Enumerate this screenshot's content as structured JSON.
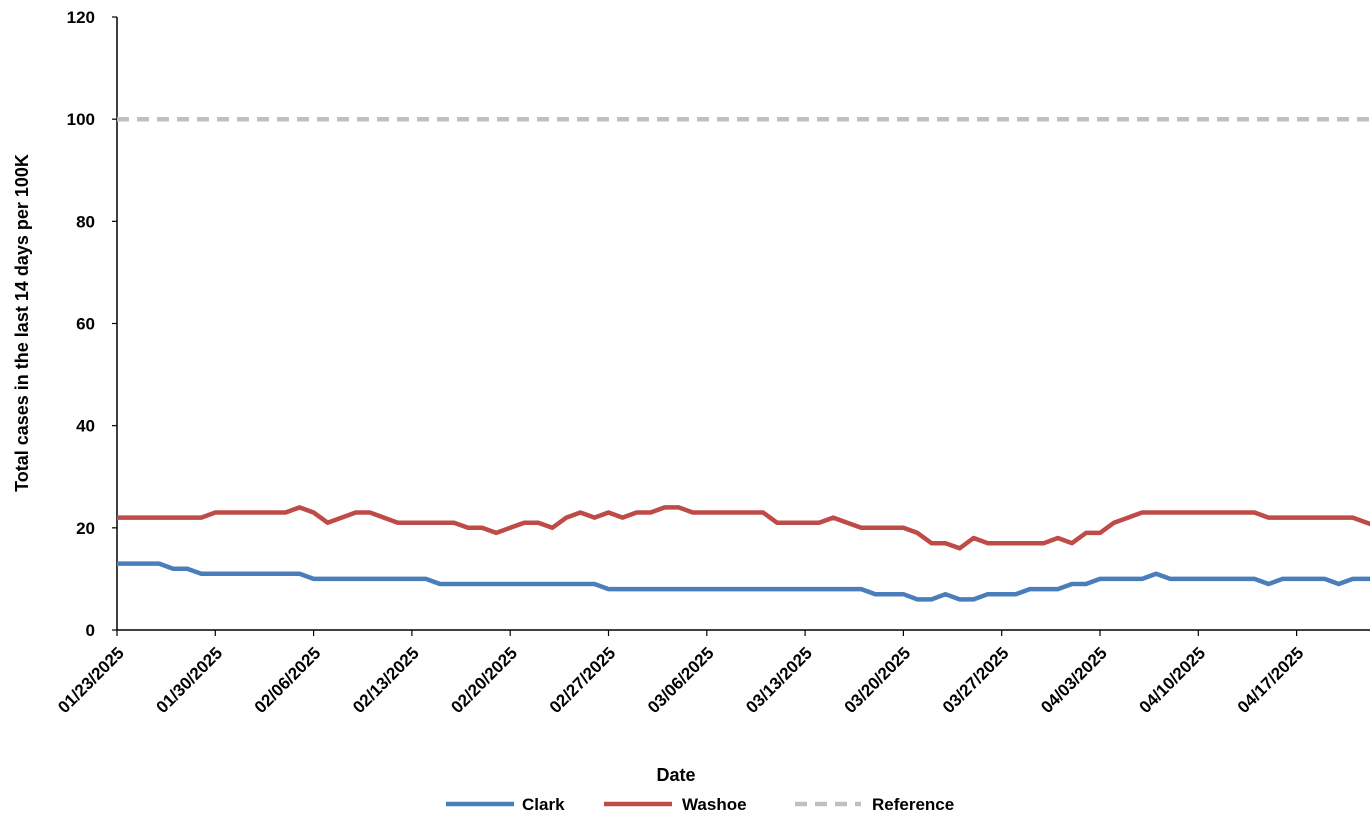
{
  "chart_data": {
    "type": "line",
    "title": "",
    "xlabel": "Date",
    "ylabel": "Total cases in the last 14 days per 100K",
    "ylim": [
      0,
      120
    ],
    "yticks": [
      0,
      20,
      40,
      60,
      80,
      100,
      120
    ],
    "x_start": "01/23/2025",
    "x_end": "04/23/2025",
    "x_tick_labels": [
      "01/23/2025",
      "01/30/2025",
      "02/06/2025",
      "02/13/2025",
      "02/20/2025",
      "02/27/2025",
      "03/06/2025",
      "03/13/2025",
      "03/20/2025",
      "03/27/2025",
      "04/03/2025",
      "04/10/2025",
      "04/17/2025"
    ],
    "grid": false,
    "legend_position": "bottom",
    "series": [
      {
        "name": "Clark",
        "color": "#4a7ebb",
        "style": "solid",
        "values": [
          13,
          13,
          13,
          13,
          12,
          12,
          11,
          11,
          11,
          11,
          11,
          11,
          11,
          11,
          10,
          10,
          10,
          10,
          10,
          10,
          10,
          10,
          10,
          9,
          9,
          9,
          9,
          9,
          9,
          9,
          9,
          9,
          9,
          9,
          9,
          8,
          8,
          8,
          8,
          8,
          8,
          8,
          8,
          8,
          8,
          8,
          8,
          8,
          8,
          8,
          8,
          8,
          8,
          8,
          7,
          7,
          7,
          6,
          6,
          7,
          6,
          6,
          7,
          7,
          7,
          8,
          8,
          8,
          9,
          9,
          10,
          10,
          10,
          10,
          11,
          10,
          10,
          10,
          10,
          10,
          10,
          10,
          9,
          10,
          10,
          10,
          10,
          9,
          10,
          10,
          10,
          10,
          9,
          9
        ]
      },
      {
        "name": "Washoe",
        "color": "#be4b48",
        "style": "solid",
        "values": [
          22,
          22,
          22,
          22,
          22,
          22,
          22,
          23,
          23,
          23,
          23,
          23,
          23,
          24,
          23,
          21,
          22,
          23,
          23,
          22,
          21,
          21,
          21,
          21,
          21,
          20,
          20,
          19,
          20,
          21,
          21,
          20,
          22,
          23,
          22,
          23,
          22,
          23,
          23,
          24,
          24,
          23,
          23,
          23,
          23,
          23,
          23,
          21,
          21,
          21,
          21,
          22,
          21,
          20,
          20,
          20,
          20,
          19,
          17,
          17,
          16,
          18,
          17,
          17,
          17,
          17,
          17,
          18,
          17,
          19,
          19,
          21,
          22,
          23,
          23,
          23,
          23,
          23,
          23,
          23,
          23,
          23,
          22,
          22,
          22,
          22,
          22,
          22,
          22,
          21,
          20,
          21,
          20,
          19
        ]
      },
      {
        "name": "Reference",
        "color": "#bfbfbf",
        "style": "dashed",
        "values": [
          100,
          100,
          100,
          100,
          100,
          100,
          100,
          100,
          100,
          100,
          100,
          100,
          100,
          100,
          100,
          100,
          100,
          100,
          100,
          100,
          100,
          100,
          100,
          100,
          100,
          100,
          100,
          100,
          100,
          100,
          100,
          100,
          100,
          100,
          100,
          100,
          100,
          100,
          100,
          100,
          100,
          100,
          100,
          100,
          100,
          100,
          100,
          100,
          100,
          100,
          100,
          100,
          100,
          100,
          100,
          100,
          100,
          100,
          100,
          100,
          100,
          100,
          100,
          100,
          100,
          100,
          100,
          100,
          100,
          100,
          100,
          100,
          100,
          100,
          100,
          100,
          100,
          100,
          100,
          100,
          100,
          100,
          100,
          100,
          100,
          100,
          100,
          100,
          100,
          100,
          100,
          100,
          100,
          100
        ]
      }
    ]
  }
}
